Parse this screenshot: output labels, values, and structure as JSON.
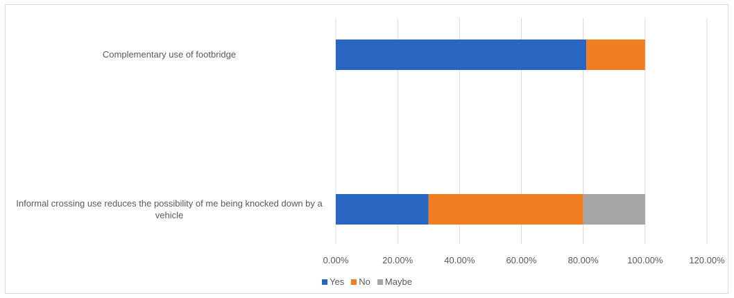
{
  "chart_data": {
    "type": "bar",
    "orientation": "horizontal",
    "stacked": true,
    "title": "",
    "xlabel": "",
    "ylabel": "",
    "categories": [
      "Complementary use of footbridge",
      "Informal crossing use reduces the possibility of me being knocked down by a vehicle"
    ],
    "series": [
      {
        "name": "Yes",
        "color": "#2866c2",
        "values": [
          0.81,
          0.3
        ]
      },
      {
        "name": "No",
        "color": "#f37e22",
        "values": [
          0.19,
          0.5
        ]
      },
      {
        "name": "Maybe",
        "color": "#a5a5a5",
        "values": [
          0.0,
          0.2
        ]
      }
    ],
    "xlim": [
      0,
      1.2
    ],
    "xticks": [
      "0.00%",
      "20.00%",
      "40.00%",
      "60.00%",
      "80.00%",
      "100.00%",
      "120.00%"
    ],
    "grid": true,
    "legend_position": "bottom"
  }
}
